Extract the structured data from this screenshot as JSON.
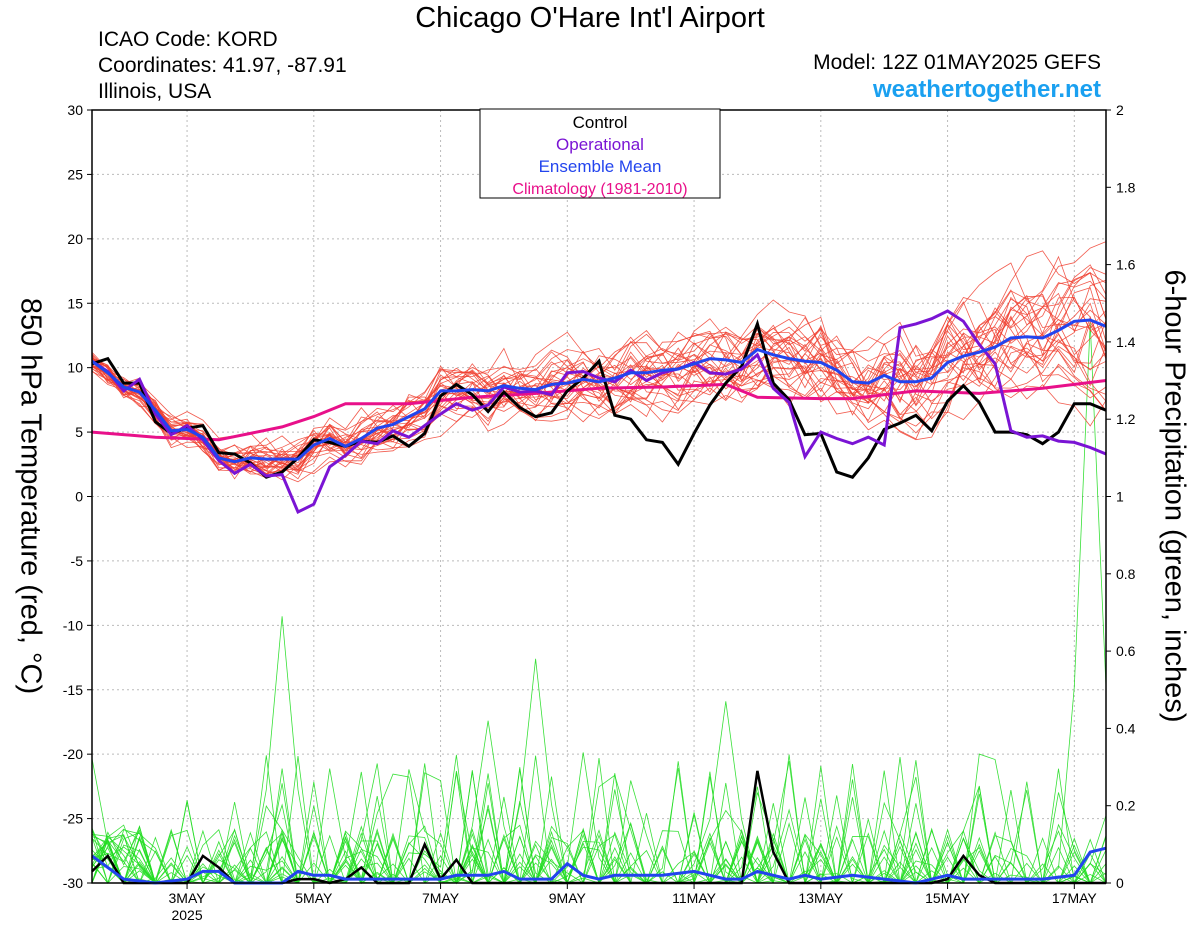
{
  "header": {
    "title": "Chicago O'Hare Int'l Airport",
    "icao": "ICAO Code: KORD",
    "coordinates": "Coordinates: 41.97, -87.91",
    "region": "Illinois, USA",
    "model": "Model: 12Z 01MAY2025 GEFS",
    "site": "weathertogether.net"
  },
  "colors": {
    "control": "#000000",
    "operational": "#7a14d4",
    "ensemble_mean": "#2244ee",
    "climatology": "#e8108a",
    "members_temp": "#f04030",
    "members_precip": "#22dd22",
    "grid": "#bbbbbb"
  },
  "chart_data": {
    "type": "line",
    "title": "Chicago O'Hare Int'l Airport",
    "ylabel_left": "850 hPa Temperature (red, °C)",
    "ylabel_right": "6-hour Precipitation (green, inches)",
    "ylim_left": [
      -30,
      30
    ],
    "ylim_right": [
      0,
      2
    ],
    "yticks_left": [
      "30",
      "25",
      "20",
      "15",
      "10",
      "5",
      "0",
      "-5",
      "-10",
      "-15",
      "-20",
      "-25",
      "-30"
    ],
    "yticks_right": [
      "2",
      "1.8",
      "1.6",
      "1.4",
      "1.2",
      "1",
      "0.8",
      "0.6",
      "0.4",
      "0.2",
      "0"
    ],
    "xlim": [
      1.5,
      17.5
    ],
    "xticks": [
      {
        "x": 3,
        "label": "3MAY",
        "sub": "2025"
      },
      {
        "x": 5,
        "label": "5MAY",
        "sub": ""
      },
      {
        "x": 7,
        "label": "7MAY",
        "sub": ""
      },
      {
        "x": 9,
        "label": "9MAY",
        "sub": ""
      },
      {
        "x": 11,
        "label": "11MAY",
        "sub": ""
      },
      {
        "x": 13,
        "label": "13MAY",
        "sub": ""
      },
      {
        "x": 15,
        "label": "15MAY",
        "sub": ""
      },
      {
        "x": 17,
        "label": "17MAY",
        "sub": ""
      }
    ],
    "grid": true,
    "legend": {
      "placement": "top-center",
      "entries": [
        {
          "label": "Control",
          "color": "#000000"
        },
        {
          "label": "Operational",
          "color": "#7a14d4"
        },
        {
          "label": "Ensemble Mean",
          "color": "#2244ee"
        },
        {
          "label": "Climatology (1981-2010)",
          "color": "#e8108a"
        }
      ]
    },
    "temperature": {
      "control": [
        [
          1.5,
          10.3
        ],
        [
          1.75,
          10.7
        ],
        [
          2.0,
          8.8
        ],
        [
          2.25,
          8.8
        ],
        [
          2.5,
          5.8
        ],
        [
          2.75,
          4.9
        ],
        [
          3.0,
          5.3
        ],
        [
          3.25,
          5.5
        ],
        [
          3.5,
          3.4
        ],
        [
          3.75,
          3.3
        ],
        [
          4.0,
          2.6
        ],
        [
          4.25,
          1.5
        ],
        [
          4.5,
          1.9
        ],
        [
          4.75,
          3.0
        ],
        [
          5.0,
          4.4
        ],
        [
          5.25,
          4.2
        ],
        [
          5.5,
          3.9
        ],
        [
          5.75,
          4.3
        ],
        [
          6.0,
          4.2
        ],
        [
          6.25,
          4.7
        ],
        [
          6.5,
          3.9
        ],
        [
          6.75,
          4.9
        ],
        [
          7.0,
          7.8
        ],
        [
          7.25,
          8.7
        ],
        [
          7.5,
          7.9
        ],
        [
          7.75,
          6.6
        ],
        [
          8.0,
          8.1
        ],
        [
          8.25,
          6.9
        ],
        [
          8.5,
          6.2
        ],
        [
          8.75,
          6.5
        ],
        [
          9.0,
          8.2
        ],
        [
          9.25,
          9.2
        ],
        [
          9.5,
          10.5
        ],
        [
          9.75,
          6.3
        ],
        [
          10.0,
          6.0
        ],
        [
          10.25,
          4.4
        ],
        [
          10.5,
          4.2
        ],
        [
          10.75,
          2.5
        ],
        [
          11.0,
          4.9
        ],
        [
          11.25,
          7.1
        ],
        [
          11.5,
          8.8
        ],
        [
          11.75,
          10.1
        ],
        [
          12.0,
          13.4
        ],
        [
          12.25,
          8.8
        ],
        [
          12.5,
          7.5
        ],
        [
          12.75,
          4.8
        ],
        [
          13.0,
          4.9
        ],
        [
          13.25,
          1.9
        ],
        [
          13.5,
          1.5
        ],
        [
          13.75,
          3.0
        ],
        [
          14.0,
          5.2
        ],
        [
          14.25,
          5.7
        ],
        [
          14.5,
          6.3
        ],
        [
          14.75,
          5.1
        ],
        [
          15.0,
          7.4
        ],
        [
          15.25,
          8.6
        ],
        [
          15.5,
          7.3
        ],
        [
          15.75,
          5.0
        ],
        [
          16.0,
          5.0
        ],
        [
          16.25,
          4.8
        ],
        [
          16.5,
          4.1
        ],
        [
          16.75,
          5.0
        ],
        [
          17.0,
          7.2
        ],
        [
          17.25,
          7.2
        ],
        [
          17.5,
          6.7
        ]
      ],
      "operational": [
        [
          1.5,
          10.5
        ],
        [
          1.75,
          9.7
        ],
        [
          2.0,
          8.2
        ],
        [
          2.25,
          9.1
        ],
        [
          2.5,
          6.4
        ],
        [
          2.75,
          4.8
        ],
        [
          3.0,
          5.5
        ],
        [
          3.25,
          4.4
        ],
        [
          3.5,
          2.8
        ],
        [
          3.75,
          1.8
        ],
        [
          4.0,
          2.5
        ],
        [
          4.25,
          1.6
        ],
        [
          4.5,
          1.7
        ],
        [
          4.75,
          -1.2
        ],
        [
          5.0,
          -0.6
        ],
        [
          5.25,
          2.3
        ],
        [
          5.5,
          3.2
        ],
        [
          5.75,
          4.3
        ],
        [
          6.0,
          4.1
        ],
        [
          6.25,
          5.1
        ],
        [
          6.5,
          4.6
        ],
        [
          6.75,
          5.5
        ],
        [
          7.0,
          6.4
        ],
        [
          7.25,
          7.2
        ],
        [
          7.5,
          6.7
        ],
        [
          7.75,
          7.1
        ],
        [
          8.0,
          8.5
        ],
        [
          8.25,
          8.1
        ],
        [
          8.5,
          8.2
        ],
        [
          8.75,
          7.9
        ],
        [
          9.0,
          9.6
        ],
        [
          9.25,
          9.7
        ],
        [
          9.5,
          9.2
        ],
        [
          9.75,
          8.9
        ],
        [
          10.0,
          9.8
        ],
        [
          10.25,
          9.0
        ],
        [
          10.5,
          9.6
        ],
        [
          10.75,
          9.9
        ],
        [
          11.0,
          10.4
        ],
        [
          11.25,
          9.6
        ],
        [
          11.5,
          9.5
        ],
        [
          11.75,
          9.9
        ],
        [
          12.0,
          11.0
        ],
        [
          12.25,
          8.4
        ],
        [
          12.5,
          7.3
        ],
        [
          12.75,
          3.1
        ],
        [
          13.0,
          5.0
        ],
        [
          13.25,
          4.5
        ],
        [
          13.5,
          4.1
        ],
        [
          13.75,
          4.6
        ],
        [
          14.0,
          4.0
        ],
        [
          14.25,
          13.1
        ],
        [
          14.5,
          13.4
        ],
        [
          14.75,
          13.8
        ],
        [
          15.0,
          14.4
        ],
        [
          15.25,
          13.6
        ],
        [
          15.5,
          11.8
        ],
        [
          15.75,
          10.3
        ],
        [
          16.0,
          5.1
        ],
        [
          16.25,
          4.6
        ],
        [
          16.5,
          4.7
        ],
        [
          16.75,
          4.3
        ],
        [
          17.0,
          4.2
        ],
        [
          17.25,
          3.8
        ],
        [
          17.5,
          3.3
        ]
      ],
      "ensemble_mean": [
        [
          1.5,
          10.5
        ],
        [
          1.75,
          9.6
        ],
        [
          2.0,
          8.5
        ],
        [
          2.25,
          8.1
        ],
        [
          2.5,
          6.7
        ],
        [
          2.75,
          5.1
        ],
        [
          3.0,
          5.2
        ],
        [
          3.25,
          4.6
        ],
        [
          3.5,
          3.0
        ],
        [
          3.75,
          2.7
        ],
        [
          4.0,
          3.0
        ],
        [
          4.25,
          2.9
        ],
        [
          4.5,
          2.9
        ],
        [
          4.75,
          2.9
        ],
        [
          5.0,
          4.0
        ],
        [
          5.25,
          4.5
        ],
        [
          5.5,
          3.9
        ],
        [
          5.75,
          4.5
        ],
        [
          6.0,
          5.3
        ],
        [
          6.25,
          5.6
        ],
        [
          6.5,
          6.2
        ],
        [
          6.75,
          6.8
        ],
        [
          7.0,
          8.2
        ],
        [
          7.25,
          8.2
        ],
        [
          7.5,
          8.3
        ],
        [
          7.75,
          8.2
        ],
        [
          8.0,
          8.6
        ],
        [
          8.25,
          8.4
        ],
        [
          8.5,
          8.3
        ],
        [
          8.75,
          8.7
        ],
        [
          9.0,
          8.8
        ],
        [
          9.25,
          9.1
        ],
        [
          9.5,
          8.9
        ],
        [
          9.75,
          9.2
        ],
        [
          10.0,
          9.6
        ],
        [
          10.25,
          9.6
        ],
        [
          10.5,
          9.8
        ],
        [
          10.75,
          9.9
        ],
        [
          11.0,
          10.3
        ],
        [
          11.25,
          10.7
        ],
        [
          11.5,
          10.6
        ],
        [
          11.75,
          10.4
        ],
        [
          12.0,
          11.4
        ],
        [
          12.25,
          11.0
        ],
        [
          12.5,
          10.7
        ],
        [
          12.75,
          10.5
        ],
        [
          13.0,
          10.4
        ],
        [
          13.25,
          9.8
        ],
        [
          13.5,
          8.9
        ],
        [
          13.75,
          8.8
        ],
        [
          14.0,
          9.4
        ],
        [
          14.25,
          8.9
        ],
        [
          14.5,
          8.9
        ],
        [
          14.75,
          9.2
        ],
        [
          15.0,
          10.4
        ],
        [
          15.25,
          10.9
        ],
        [
          15.5,
          11.2
        ],
        [
          15.75,
          11.6
        ],
        [
          16.0,
          12.3
        ],
        [
          16.25,
          12.4
        ],
        [
          16.5,
          12.3
        ],
        [
          16.75,
          12.9
        ],
        [
          17.0,
          13.6
        ],
        [
          17.25,
          13.7
        ],
        [
          17.5,
          13.2
        ]
      ],
      "climatology": [
        [
          1.5,
          5.0
        ],
        [
          2.5,
          4.6
        ],
        [
          3.5,
          4.4
        ],
        [
          4.5,
          5.4
        ],
        [
          5.0,
          6.2
        ],
        [
          5.5,
          7.2
        ],
        [
          6.5,
          7.2
        ],
        [
          7.5,
          7.7
        ],
        [
          8.5,
          8.0
        ],
        [
          9.5,
          8.4
        ],
        [
          10.5,
          8.5
        ],
        [
          11.5,
          8.7
        ],
        [
          12.0,
          7.7
        ],
        [
          13.0,
          7.6
        ],
        [
          13.5,
          7.6
        ],
        [
          14.5,
          8.2
        ],
        [
          15.5,
          8.0
        ],
        [
          16.5,
          8.4
        ],
        [
          17.5,
          9.0
        ]
      ]
    },
    "precipitation": {
      "control": [
        [
          1.5,
          0.03
        ],
        [
          1.75,
          0.07
        ],
        [
          2.0,
          0.0
        ],
        [
          2.5,
          0.0
        ],
        [
          2.75,
          0.0
        ],
        [
          3.0,
          0.0
        ],
        [
          3.25,
          0.07
        ],
        [
          3.5,
          0.04
        ],
        [
          3.75,
          0.0
        ],
        [
          4.5,
          0.0
        ],
        [
          4.75,
          0.01
        ],
        [
          5.0,
          0.01
        ],
        [
          5.25,
          0.0
        ],
        [
          5.5,
          0.01
        ],
        [
          5.75,
          0.04
        ],
        [
          6.0,
          0.0
        ],
        [
          6.25,
          0.0
        ],
        [
          6.5,
          0.0
        ],
        [
          6.75,
          0.1
        ],
        [
          7.0,
          0.01
        ],
        [
          7.25,
          0.06
        ],
        [
          7.5,
          0.0
        ],
        [
          8.0,
          0.0
        ],
        [
          9.0,
          0.0
        ],
        [
          10.0,
          0.0
        ],
        [
          11.0,
          0.0
        ],
        [
          11.5,
          0.0
        ],
        [
          11.75,
          0.0
        ],
        [
          12.0,
          0.29
        ],
        [
          12.25,
          0.08
        ],
        [
          12.5,
          0.0
        ],
        [
          13.0,
          0.0
        ],
        [
          14.0,
          0.0
        ],
        [
          14.75,
          0.0
        ],
        [
          15.0,
          0.01
        ],
        [
          15.25,
          0.07
        ],
        [
          15.5,
          0.02
        ],
        [
          15.75,
          0.0
        ],
        [
          16.0,
          0.0
        ],
        [
          16.5,
          0.0
        ],
        [
          17.0,
          0.0
        ],
        [
          17.5,
          0.0
        ]
      ],
      "ensemble_mean": [
        [
          1.5,
          0.07
        ],
        [
          1.75,
          0.04
        ],
        [
          2.0,
          0.01
        ],
        [
          2.5,
          0.0
        ],
        [
          3.0,
          0.01
        ],
        [
          3.25,
          0.03
        ],
        [
          3.5,
          0.03
        ],
        [
          3.75,
          0.0
        ],
        [
          4.5,
          0.0
        ],
        [
          4.75,
          0.03
        ],
        [
          5.0,
          0.02
        ],
        [
          5.25,
          0.02
        ],
        [
          5.5,
          0.01
        ],
        [
          6.0,
          0.01
        ],
        [
          6.5,
          0.01
        ],
        [
          7.0,
          0.01
        ],
        [
          7.25,
          0.02
        ],
        [
          7.5,
          0.02
        ],
        [
          7.75,
          0.02
        ],
        [
          8.0,
          0.03
        ],
        [
          8.25,
          0.01
        ],
        [
          8.75,
          0.01
        ],
        [
          9.0,
          0.05
        ],
        [
          9.25,
          0.02
        ],
        [
          9.5,
          0.01
        ],
        [
          9.75,
          0.02
        ],
        [
          10.0,
          0.02
        ],
        [
          10.5,
          0.02
        ],
        [
          11.0,
          0.03
        ],
        [
          11.5,
          0.01
        ],
        [
          11.75,
          0.01
        ],
        [
          12.0,
          0.03
        ],
        [
          12.25,
          0.02
        ],
        [
          12.5,
          0.01
        ],
        [
          12.75,
          0.02
        ],
        [
          13.0,
          0.01
        ],
        [
          13.5,
          0.02
        ],
        [
          14.0,
          0.01
        ],
        [
          14.5,
          0.0
        ],
        [
          15.0,
          0.02
        ],
        [
          15.25,
          0.01
        ],
        [
          15.75,
          0.01
        ],
        [
          16.0,
          0.01
        ],
        [
          16.5,
          0.01
        ],
        [
          17.0,
          0.02
        ],
        [
          17.25,
          0.08
        ],
        [
          17.5,
          0.09
        ]
      ],
      "notable_member_peaks": [
        [
          4.5,
          0.69
        ],
        [
          8.5,
          0.58
        ],
        [
          7.75,
          0.42
        ],
        [
          11.5,
          0.47
        ],
        [
          17.25,
          1.45
        ]
      ]
    },
    "ensemble_members": {
      "count": 30,
      "temperature_spread_range": [
        -2.3,
        22.5
      ],
      "precipitation_max": 1.45
    }
  }
}
